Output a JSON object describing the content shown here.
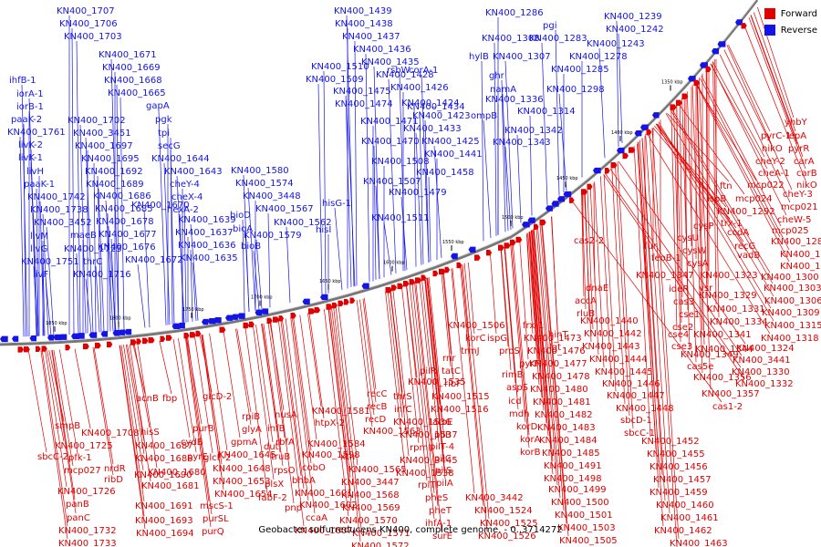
{
  "caption": "Geobacter sulfurreducens KN400, complete genome. - 0..3714272",
  "legend": [
    {
      "label": "Forward",
      "color": "#e00000"
    },
    {
      "label": "Reverse",
      "color": "#1414e6"
    }
  ],
  "colors": {
    "forward": "#e00000",
    "reverse": "#1414e6",
    "backbone": "#777777"
  },
  "ticks": [
    "1850 kbp",
    "1800 kbp",
    "1750 kbp",
    "1700 kbp",
    "1650 kbp",
    "1600 kbp",
    "1550 kbp",
    "1500 kbp",
    "1450 kbp",
    "1400 kbp",
    "1350 kbp"
  ],
  "reverse_genes": [
    [
      "KN400_1707",
      62,
      7
    ],
    [
      "KN400_1706",
      65,
      21
    ],
    [
      "KN400_1703",
      70,
      35
    ],
    [
      "ihfB-1",
      10,
      83
    ],
    [
      "iorA-1",
      18,
      98
    ],
    [
      "iorB-1",
      18,
      112
    ],
    [
      "paaK-2",
      12,
      126
    ],
    [
      "KN400_1761",
      8,
      140
    ],
    [
      "livK-2",
      20,
      154
    ],
    [
      "livK-1",
      20,
      168
    ],
    [
      "livH",
      29,
      183
    ],
    [
      "paaK-1",
      26,
      197
    ],
    [
      "KN400_1742",
      30,
      211
    ],
    [
      "KN400_1738",
      33,
      225
    ],
    [
      "KN400_3452",
      37,
      239
    ],
    [
      "livM",
      33,
      254
    ],
    [
      "livG",
      33,
      268
    ],
    [
      "KN400_1751",
      23,
      282
    ],
    [
      "livF",
      36,
      296
    ],
    [
      "KN400_1671",
      108,
      55
    ],
    [
      "KN400_1669",
      112,
      69
    ],
    [
      "KN400_1668",
      114,
      83
    ],
    [
      "KN400_1665",
      118,
      97
    ],
    [
      "KN400_1702",
      74,
      127
    ],
    [
      "KN400_3451",
      80,
      141
    ],
    [
      "KN400_1697",
      82,
      155
    ],
    [
      "KN400_1695",
      89,
      169
    ],
    [
      "KN400_1692",
      93,
      183
    ],
    [
      "KN400_1689",
      94,
      197
    ],
    [
      "KN400_1686",
      102,
      210
    ],
    [
      "KN400_1685",
      104,
      224
    ],
    [
      "KN400_1678",
      105,
      238
    ],
    [
      "KN400_1677",
      108,
      252
    ],
    [
      "KN400_1676",
      107,
      266
    ],
    [
      "KN400_1672",
      137,
      280
    ],
    [
      "maeB",
      77,
      253
    ],
    [
      "KN400_1723",
      70,
      268
    ],
    [
      "thrC",
      91,
      282
    ],
    [
      "KN400_1716",
      80,
      296
    ],
    [
      "gapA",
      160,
      111
    ],
    [
      "pgk",
      170,
      126
    ],
    [
      "tpi",
      173,
      141
    ],
    [
      "secG",
      173,
      155
    ],
    [
      "KN400_1644",
      166,
      169
    ],
    [
      "KN400_1643",
      180,
      183
    ],
    [
      "cheY-4",
      186,
      197
    ],
    [
      "cheX-4",
      188,
      211
    ],
    [
      "hexA-2",
      183,
      225
    ],
    [
      "KN400_1670",
      144,
      220
    ],
    [
      "KN400_1639",
      195,
      236
    ],
    [
      "KN400_1637",
      192,
      250
    ],
    [
      "KN400_1636",
      195,
      264
    ],
    [
      "KN400_1635",
      197,
      278
    ],
    [
      "KN400_1580",
      253,
      182
    ],
    [
      "KN400_1574",
      258,
      196
    ],
    [
      "KN400_3448",
      266,
      210
    ],
    [
      "KN400_1567",
      280,
      224
    ],
    [
      "KN400_1562",
      300,
      239
    ],
    [
      "KN400_1579",
      267,
      253
    ],
    [
      "hisG-1",
      353,
      218
    ],
    [
      "hisI",
      346,
      247
    ],
    [
      "bioD",
      252,
      231
    ],
    [
      "bioA",
      255,
      246
    ],
    [
      "bioB",
      264,
      265
    ],
    [
      "KN400_1439",
      366,
      7
    ],
    [
      "KN400_1438",
      367,
      21
    ],
    [
      "KN400_1437",
      375,
      35
    ],
    [
      "KN400_1436",
      387,
      49
    ],
    [
      "KN400_1435",
      396,
      63
    ],
    [
      "KN400_1428",
      412,
      77
    ],
    [
      "KN400_1426",
      428,
      91
    ],
    [
      "KN400_1424",
      440,
      108
    ],
    [
      "KN400_1423",
      452,
      122
    ],
    [
      "KN400_1433",
      442,
      136
    ],
    [
      "KN400_1425",
      462,
      150
    ],
    [
      "KN400_1441",
      465,
      164
    ],
    [
      "KN400_1510",
      341,
      68
    ],
    [
      "KN400_1509",
      335,
      82
    ],
    [
      "KN400_1475",
      365,
      95
    ],
    [
      "KN400_1474",
      367,
      109
    ],
    [
      "KN400_1471",
      395,
      128
    ],
    [
      "KN400_1470",
      396,
      150
    ],
    [
      "KN400_1434",
      446,
      112
    ],
    [
      "rsbW",
      424,
      72
    ],
    [
      "corA-1",
      448,
      72
    ],
    [
      "KN400_1508",
      407,
      172
    ],
    [
      "KN400_1458",
      456,
      184
    ],
    [
      "KN400_1507",
      398,
      194
    ],
    [
      "KN400_1479",
      426,
      206
    ],
    [
      "KN400_1511",
      407,
      234
    ],
    [
      "KN400_1286",
      532,
      9
    ],
    [
      "KN400_1308",
      528,
      37
    ],
    [
      "pgi",
      595,
      23
    ],
    [
      "KN400_1283",
      580,
      37
    ],
    [
      "KN400_1307",
      540,
      57
    ],
    [
      "KN400_1285",
      604,
      71
    ],
    [
      "hylB",
      514,
      57
    ],
    [
      "ghr",
      536,
      78
    ],
    [
      "namA",
      537,
      93
    ],
    [
      "ompB",
      516,
      122
    ],
    [
      "KN400_1336",
      532,
      104
    ],
    [
      "KN400_1314",
      567,
      117
    ],
    [
      "KN400_1342",
      553,
      138
    ],
    [
      "KN400_1343",
      540,
      151
    ],
    [
      "KN400_1298",
      599,
      93
    ],
    [
      "KN400_1278",
      624,
      57
    ],
    [
      "KN400_1239",
      662,
      13
    ],
    [
      "KN400_1242",
      664,
      27
    ],
    [
      "KN400_1243",
      643,
      43
    ]
  ],
  "forward_genes": [
    [
      "yhbY",
      860,
      129
    ],
    [
      "pyrC-1",
      834,
      144
    ],
    [
      "lepA",
      862,
      144
    ],
    [
      "nikO",
      835,
      158
    ],
    [
      "pyrR",
      864,
      158
    ],
    [
      "cheY-2",
      828,
      172
    ],
    [
      "carA",
      870,
      172
    ],
    [
      "cheA-1",
      831,
      185
    ],
    [
      "carB",
      873,
      185
    ],
    [
      "nikO",
      873,
      198
    ],
    [
      "ftn",
      789,
      199
    ],
    [
      "mcp024",
      806,
      213
    ],
    [
      "mcp022",
      819,
      198
    ],
    [
      "cheY-3",
      858,
      208
    ],
    [
      "mcp021",
      856,
      222
    ],
    [
      "ispB",
      775,
      213
    ],
    [
      "KN400_1292",
      786,
      227
    ],
    [
      "cheW-5",
      852,
      236
    ],
    [
      "mcp025",
      846,
      248
    ],
    [
      "ccdA",
      797,
      250
    ],
    [
      "recG",
      805,
      265
    ],
    [
      "trx-1",
      790,
      240
    ],
    [
      "KN400_1287",
      845,
      260
    ],
    [
      "vadB",
      808,
      275
    ],
    [
      "KN400_1289",
      855,
      274
    ],
    [
      "KN400_1294",
      855,
      287
    ],
    [
      "KN400_1300",
      834,
      299
    ],
    [
      "KN400_1303",
      837,
      311
    ],
    [
      "KN400_1306",
      838,
      325
    ],
    [
      "KN400_1309",
      835,
      338
    ],
    [
      "KN400_1315",
      838,
      352
    ],
    [
      "KN400_1318",
      834,
      366
    ],
    [
      "KN400_1324",
      807,
      377
    ],
    [
      "KN400_3441",
      803,
      390
    ],
    [
      "KN400_1330",
      802,
      403
    ],
    [
      "KN400_1332",
      806,
      416
    ],
    [
      "cysP",
      760,
      243
    ],
    [
      "cysU",
      742,
      256
    ],
    [
      "cysW",
      748,
      270
    ],
    [
      "cysA",
      753,
      284
    ],
    [
      "fur",
      706,
      265
    ],
    [
      "feoB-1",
      714,
      278
    ],
    [
      "KN400_1347",
      697,
      297
    ],
    [
      "KN400_1323",
      767,
      297
    ],
    [
      "ideR",
      733,
      312
    ],
    [
      "cas3",
      738,
      326
    ],
    [
      "cse1",
      744,
      340
    ],
    [
      "vsr",
      766,
      311
    ],
    [
      "KN400_1329",
      766,
      319
    ],
    [
      "KN400_1331",
      775,
      334
    ],
    [
      "KN400_1334",
      778,
      348
    ],
    [
      "cse2",
      737,
      354
    ],
    [
      "KN400_1341",
      760,
      362
    ],
    [
      "cse4",
      732,
      362
    ],
    [
      "cse3",
      736,
      375
    ],
    [
      "KN400_1344",
      762,
      378
    ],
    [
      "KN400_1349",
      746,
      384
    ],
    [
      "cas5e",
      753,
      397
    ],
    [
      "KN400_1356",
      760,
      409
    ],
    [
      "KN400_1357",
      769,
      427
    ],
    [
      "cas1-2",
      781,
      441
    ],
    [
      "cas2-2",
      629,
      259
    ],
    [
      "dnaE",
      642,
      311
    ],
    [
      "accA",
      630,
      325
    ],
    [
      "rluB",
      632,
      339
    ],
    [
      "hinT",
      601,
      362
    ],
    [
      "lgt",
      602,
      376
    ],
    [
      "frx-1",
      573,
      352
    ],
    [
      "KN400_1440",
      636,
      347
    ],
    [
      "KN400_1442",
      640,
      361
    ],
    [
      "KN400_1443",
      638,
      375
    ],
    [
      "KN400_1444",
      646,
      389
    ],
    [
      "KN400_1445",
      652,
      403
    ],
    [
      "KN400_1446",
      660,
      416
    ],
    [
      "KN400_1447",
      665,
      429
    ],
    [
      "KN400_1448",
      675,
      443
    ],
    [
      "sbcD-1",
      680,
      456
    ],
    [
      "sbcC-1",
      684,
      470
    ],
    [
      "KN400_1452",
      703,
      479
    ],
    [
      "KN400_1455",
      709,
      493
    ],
    [
      "KN400_1456",
      712,
      507
    ],
    [
      "KN400_1457",
      716,
      521
    ],
    [
      "KN400_1459",
      712,
      535
    ],
    [
      "KN400_1460",
      719,
      549
    ],
    [
      "KN400_1461",
      724,
      563
    ],
    [
      "KN400_1462",
      717,
      577
    ],
    [
      "KN400_1463",
      734,
      591
    ],
    [
      "KN400_1464",
      732,
      600
    ],
    [
      "KN400_1473",
      574,
      366
    ],
    [
      "KN400_1476",
      578,
      380
    ],
    [
      "KN400_1477",
      580,
      394
    ],
    [
      "KN400_1478",
      583,
      408
    ],
    [
      "KN400_1480",
      581,
      422
    ],
    [
      "KN400_1481",
      584,
      436
    ],
    [
      "KN400_1482",
      586,
      450
    ],
    [
      "KN400_1483",
      589,
      464
    ],
    [
      "KN400_1484",
      591,
      478
    ],
    [
      "KN400_1485",
      594,
      492
    ],
    [
      "KN400_1491",
      596,
      506
    ],
    [
      "KN400_1498",
      596,
      520
    ],
    [
      "KN400_1499",
      601,
      532
    ],
    [
      "KN400_1500",
      604,
      546
    ],
    [
      "KN400_1501",
      608,
      560
    ],
    [
      "KN400_1503",
      611,
      574
    ],
    [
      "KN400_1505",
      613,
      588
    ],
    [
      "KN400_1506",
      490,
      352
    ],
    [
      "korC",
      510,
      366
    ],
    [
      "ispG",
      534,
      366
    ],
    [
      "trmJ",
      505,
      380
    ],
    [
      "proS",
      547,
      380
    ],
    [
      "pyrF",
      569,
      394
    ],
    [
      "rimB",
      550,
      406
    ],
    [
      "aspS",
      555,
      420
    ],
    [
      "icd",
      557,
      435
    ],
    [
      "mdh",
      558,
      449
    ],
    [
      "korD",
      566,
      463
    ],
    [
      "korA",
      570,
      477
    ],
    [
      "korB",
      570,
      491
    ],
    [
      "rnr",
      485,
      388
    ],
    [
      "pilR",
      460,
      402
    ],
    [
      "tatC",
      484,
      402
    ],
    [
      "ribF",
      487,
      416
    ],
    [
      "KN400_1535",
      447,
      414
    ],
    [
      "KN400_1515",
      473,
      430
    ],
    [
      "KN400_1516",
      472,
      444
    ],
    [
      "aroE",
      474,
      458
    ],
    [
      "pilB",
      476,
      472
    ],
    [
      "pilT-4",
      471,
      485
    ],
    [
      "pilC",
      476,
      498
    ],
    [
      "pilS",
      477,
      511
    ],
    [
      "pilA",
      478,
      525
    ],
    [
      "thrS",
      431,
      430
    ],
    [
      "infC",
      432,
      444
    ],
    [
      "KN400_1536",
      431,
      458
    ],
    [
      "KN400_1537",
      438,
      472
    ],
    [
      "rpmI",
      449,
      486
    ],
    [
      "KN400_3445",
      438,
      500
    ],
    [
      "KN400_1538",
      434,
      514
    ],
    [
      "rplT",
      458,
      527
    ],
    [
      "pheS",
      466,
      541
    ],
    [
      "pheT",
      470,
      555
    ],
    [
      "ihfA-1",
      466,
      569
    ],
    [
      "surE",
      474,
      583
    ],
    [
      "KN400_3442",
      510,
      541
    ],
    [
      "KN400_1524",
      520,
      555
    ],
    [
      "KN400_1525",
      526,
      569
    ],
    [
      "KN400_1526",
      524,
      583
    ],
    [
      "recC",
      402,
      427
    ],
    [
      "recB",
      402,
      441
    ],
    [
      "recD",
      400,
      455
    ],
    [
      "KN400_1563",
      398,
      468
    ],
    [
      "KN400_1581",
      342,
      446
    ],
    [
      "htpX-2",
      345,
      459
    ],
    [
      "KN400_1584",
      337,
      482
    ],
    [
      "xth",
      373,
      496
    ],
    [
      "KN400_1565",
      382,
      510
    ],
    [
      "KN400_3447",
      374,
      524
    ],
    [
      "KN400_1568",
      374,
      538
    ],
    [
      "KN400_1569",
      375,
      552
    ],
    [
      "KN400_1570",
      372,
      566
    ],
    [
      "KN400_1571",
      386,
      580
    ],
    [
      "KN400_1572",
      385,
      594
    ],
    [
      "nusA",
      301,
      450
    ],
    [
      "infB",
      293,
      465
    ],
    [
      "rbfA",
      302,
      480
    ],
    [
      "truB",
      297,
      496
    ],
    [
      "rpsO",
      300,
      511
    ],
    [
      "dut",
      289,
      485
    ],
    [
      "KN400_1598",
      331,
      494
    ],
    [
      "cobO",
      331,
      508
    ],
    [
      "bhbA",
      320,
      522
    ],
    [
      "KN400_1601",
      323,
      536
    ],
    [
      "KN400_1602",
      328,
      549
    ],
    [
      "ccaA",
      335,
      563
    ],
    [
      "KN400_1607",
      323,
      577
    ],
    [
      "plsX",
      290,
      526
    ],
    [
      "fabF-2",
      283,
      541
    ],
    [
      "pnp",
      312,
      552
    ],
    [
      "rpiB",
      265,
      452
    ],
    [
      "glyA",
      265,
      466
    ],
    [
      "gpmA",
      253,
      480
    ],
    [
      "KN400_1645",
      239,
      494
    ],
    [
      "KN400_1648",
      233,
      509
    ],
    [
      "KN400_1653",
      233,
      523
    ],
    [
      "KN400_1654",
      235,
      537
    ],
    [
      "mscS-1",
      219,
      550
    ],
    [
      "purSL",
      222,
      564
    ],
    [
      "purQ",
      221,
      578
    ],
    [
      "glcD-2",
      222,
      430
    ],
    [
      "purB",
      211,
      465
    ],
    [
      "pyrE",
      205,
      496
    ],
    [
      "glcF-2",
      223,
      497
    ],
    [
      "cydB",
      198,
      480
    ],
    [
      "acnB",
      149,
      432
    ],
    [
      "fbp",
      178,
      432
    ],
    [
      "hisS",
      154,
      469
    ],
    [
      "KN400_1687",
      148,
      484
    ],
    [
      "KN400_1688",
      148,
      498
    ],
    [
      "KN400_1680",
      162,
      513
    ],
    [
      "KN400_1681",
      155,
      528
    ],
    [
      "KN400_1690",
      147,
      516
    ],
    [
      "KN400_1691",
      148,
      550
    ],
    [
      "KN400_1693",
      148,
      566
    ],
    [
      "KN400_1694",
      149,
      580
    ],
    [
      "smpB",
      60,
      462
    ],
    [
      "sbcC-2",
      41,
      496
    ],
    [
      "pfk-1",
      75,
      497
    ],
    [
      "KN400_1708",
      89,
      470
    ],
    [
      "KN400_1725",
      60,
      484
    ],
    [
      "mcp027",
      70,
      511
    ],
    [
      "nrdR",
      114,
      509
    ],
    [
      "ribD",
      114,
      521
    ],
    [
      "KN400_1726",
      63,
      534
    ],
    [
      "panB",
      72,
      548
    ],
    [
      "panC",
      73,
      563
    ],
    [
      "KN400_1732",
      64,
      577
    ],
    [
      "KN400_1733",
      64,
      591
    ]
  ]
}
